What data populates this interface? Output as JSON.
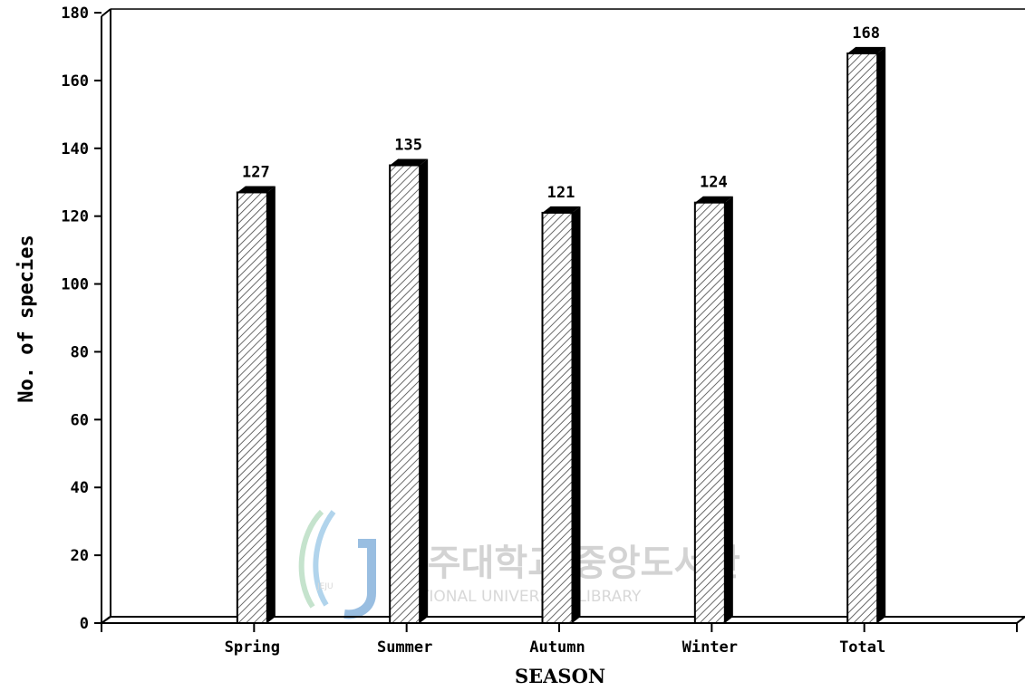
{
  "chart_data": {
    "type": "bar",
    "categories": [
      "Spring",
      "Summer",
      "Autumn",
      "Winter",
      "Total"
    ],
    "values": [
      127,
      135,
      121,
      124,
      168
    ],
    "data_labels": [
      "127",
      "135",
      "121",
      "124",
      "168"
    ],
    "xlabel": "SEASON",
    "ylabel": "No. of species",
    "ylim": [
      0,
      180
    ],
    "yticks": [
      "0",
      "20",
      "40",
      "60",
      "80",
      "100",
      "120",
      "140",
      "160",
      "180"
    ],
    "grid": false,
    "legend": "none",
    "bar_style": "3d hatched",
    "colors": {
      "bar_fill": "#ffffff",
      "hatch": "#333333",
      "shadow": "#000000"
    }
  },
  "watermark": {
    "title": "제주대학교 중앙도서관",
    "subtitle": "NATIONAL UNIVERSITY LIBRARY",
    "logo_text": "JEJU"
  }
}
